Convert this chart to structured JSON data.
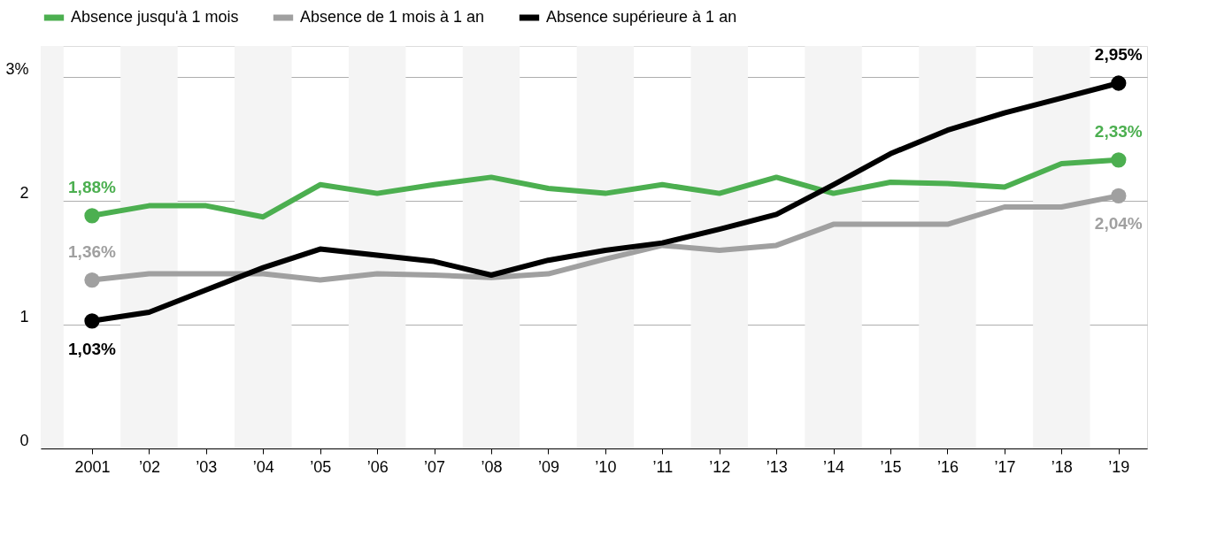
{
  "chart_data": {
    "type": "line",
    "x": [
      2001,
      2002,
      2003,
      2004,
      2005,
      2006,
      2007,
      2008,
      2009,
      2010,
      2011,
      2012,
      2013,
      2014,
      2015,
      2016,
      2017,
      2018,
      2019
    ],
    "series": [
      {
        "name": "Absence jusqu'à 1 mois",
        "color": "#4caf50",
        "values": [
          1.88,
          1.96,
          1.96,
          1.87,
          2.13,
          2.06,
          2.13,
          2.19,
          2.1,
          2.06,
          2.13,
          2.06,
          2.19,
          2.06,
          2.15,
          2.14,
          2.11,
          2.3,
          2.33
        ],
        "value_labels": [
          "1,88%",
          null,
          null,
          null,
          null,
          null,
          null,
          null,
          null,
          null,
          null,
          null,
          null,
          null,
          null,
          null,
          null,
          null,
          "2,33%"
        ]
      },
      {
        "name": "Absence de 1 mois à 1 an",
        "color": "#a0a0a0",
        "values": [
          1.36,
          1.41,
          1.41,
          1.41,
          1.36,
          1.41,
          1.4,
          1.38,
          1.41,
          1.53,
          1.64,
          1.6,
          1.64,
          1.81,
          1.81,
          1.81,
          1.95,
          1.95,
          2.04
        ],
        "value_labels": [
          "1,36%",
          null,
          null,
          null,
          null,
          null,
          null,
          null,
          null,
          null,
          null,
          null,
          null,
          null,
          null,
          null,
          null,
          null,
          "2,04%"
        ]
      },
      {
        "name": "Absence supérieure à 1 an",
        "color": "#000000",
        "values": [
          1.03,
          1.1,
          1.28,
          1.46,
          1.61,
          1.56,
          1.51,
          1.4,
          1.52,
          1.6,
          1.66,
          1.77,
          1.89,
          2.13,
          2.38,
          2.57,
          2.71,
          2.83,
          2.95
        ],
        "value_labels": [
          "1,03%",
          null,
          null,
          null,
          null,
          null,
          null,
          null,
          null,
          null,
          null,
          null,
          null,
          null,
          null,
          null,
          null,
          null,
          "2,95%"
        ]
      }
    ],
    "xlim": [
      2000.1,
      2019.5
    ],
    "xticks": [
      {
        "value": 2001,
        "label": "2001"
      },
      {
        "value": 2002,
        "label": "’02"
      },
      {
        "value": 2003,
        "label": "’03"
      },
      {
        "value": 2004,
        "label": "’04"
      },
      {
        "value": 2005,
        "label": "’05"
      },
      {
        "value": 2006,
        "label": "’06"
      },
      {
        "value": 2007,
        "label": "’07"
      },
      {
        "value": 2008,
        "label": "’08"
      },
      {
        "value": 2009,
        "label": "’09"
      },
      {
        "value": 2010,
        "label": "’10"
      },
      {
        "value": 2011,
        "label": "’11"
      },
      {
        "value": 2012,
        "label": "’12"
      },
      {
        "value": 2013,
        "label": "’13"
      },
      {
        "value": 2014,
        "label": "’14"
      },
      {
        "value": 2015,
        "label": "’15"
      },
      {
        "value": 2016,
        "label": "’16"
      },
      {
        "value": 2017,
        "label": "’17"
      },
      {
        "value": 2018,
        "label": "’18"
      },
      {
        "value": 2019,
        "label": "’19"
      }
    ],
    "ylim": [
      0,
      3.25
    ],
    "yticks": [
      0,
      1,
      2,
      {
        "value": 3,
        "label": "3%"
      }
    ],
    "grid": "y",
    "legend": "top left",
    "line_style": "solid",
    "bands": [
      {
        "axis": "x",
        "from": 2000.1,
        "to": 2000.5,
        "color": "#f4f4f4"
      },
      {
        "axis": "x",
        "from": 2001.5,
        "to": 2002.5,
        "color": "#f4f4f4"
      },
      {
        "axis": "x",
        "from": 2003.5,
        "to": 2004.5,
        "color": "#f4f4f4"
      },
      {
        "axis": "x",
        "from": 2005.5,
        "to": 2006.5,
        "color": "#f4f4f4"
      },
      {
        "axis": "x",
        "from": 2007.5,
        "to": 2008.5,
        "color": "#f4f4f4"
      },
      {
        "axis": "x",
        "from": 2009.5,
        "to": 2010.5,
        "color": "#f4f4f4"
      },
      {
        "axis": "x",
        "from": 2011.5,
        "to": 2012.5,
        "color": "#f4f4f4"
      },
      {
        "axis": "x",
        "from": 2013.5,
        "to": 2014.5,
        "color": "#f4f4f4"
      },
      {
        "axis": "x",
        "from": 2015.5,
        "to": 2016.5,
        "color": "#f4f4f4"
      },
      {
        "axis": "x",
        "from": 2017.5,
        "to": 2018.5,
        "color": "#f4f4f4"
      }
    ]
  }
}
